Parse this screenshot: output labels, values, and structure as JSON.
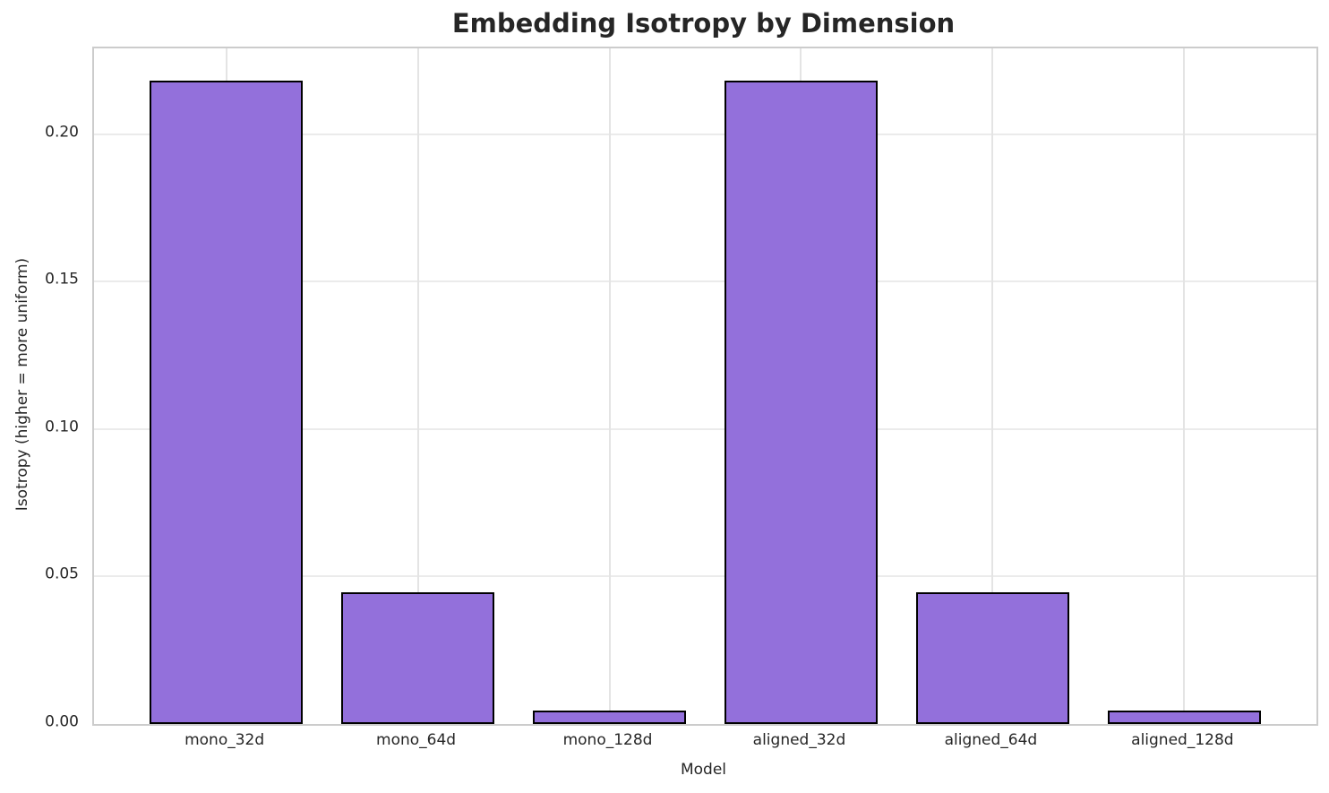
{
  "figure": {
    "background_color": "#ffffff",
    "text_color": "#262626",
    "grid_color": "#ebebeb",
    "spine_color": "#cccccc"
  },
  "chart_data": {
    "type": "bar",
    "title": "Embedding Isotropy by Dimension",
    "xlabel": "Model",
    "ylabel": "Isotropy (higher = more uniform)",
    "categories": [
      "mono_32d",
      "mono_64d",
      "mono_128d",
      "aligned_32d",
      "aligned_64d",
      "aligned_128d"
    ],
    "values": [
      0.218,
      0.0448,
      0.0046,
      0.218,
      0.0448,
      0.0046
    ],
    "ylim": [
      0,
      0.229
    ],
    "yticks": [
      0,
      0.05,
      0.1,
      0.15,
      0.2
    ],
    "ytick_labels": [
      "0.00",
      "0.05",
      "0.10",
      "0.15",
      "0.20"
    ],
    "grid": true,
    "legend": "none",
    "bar_color": "#9370DB",
    "bar_edge_color": "#000000",
    "bar_width_fraction": 0.8,
    "x_margin_units": 0.69
  }
}
